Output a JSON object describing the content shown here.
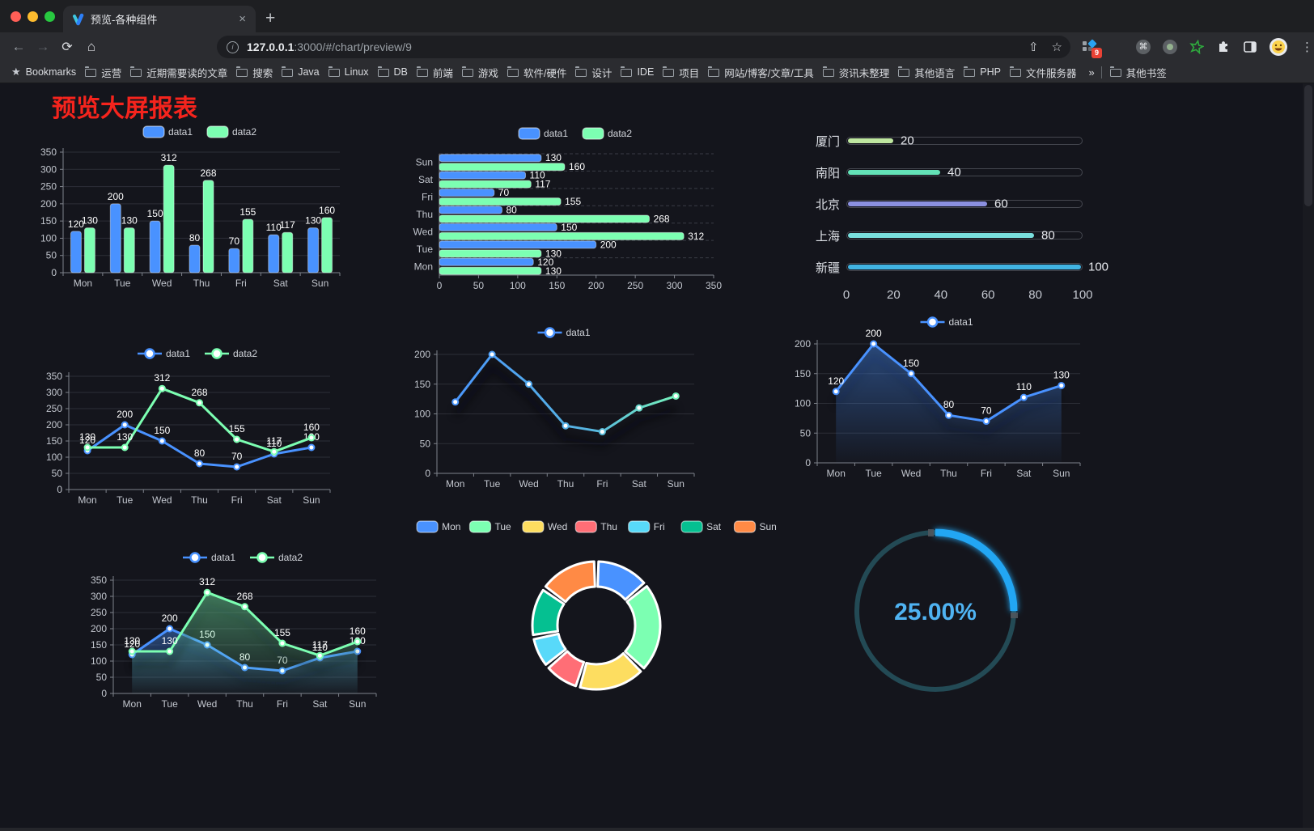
{
  "browser": {
    "tab_title": "预览-各种组件",
    "close_glyph": "×",
    "new_tab_glyph": "+",
    "back_glyph": "←",
    "forward_glyph": "→",
    "reload_glyph": "⟳",
    "home_glyph": "⌂",
    "info_glyph": "i",
    "share_glyph": "⇧",
    "star_glyph": "☆",
    "cmd_glyph": "⌘",
    "kebab_glyph": "⋮",
    "url_host": "127.0.0.1",
    "url_rest": ":3000/#/chart/preview/9",
    "extension_badge": "9",
    "bookmarks_label": "Bookmarks",
    "bookmarks": [
      "运营",
      "近期需要读的文章",
      "搜索",
      "Java",
      "Linux",
      "DB",
      "前端",
      "游戏",
      "软件/硬件",
      "设计",
      "IDE",
      "项目",
      "网站/博客/文章/工具",
      "资讯未整理",
      "其他语言",
      "PHP",
      "文件服务器"
    ],
    "bookmarks_overflow": "»",
    "other_bookmarks": "其他书签"
  },
  "page": {
    "title": "预览大屏报表"
  },
  "chart_data": [
    {
      "id": "bar-vertical",
      "type": "bar",
      "categories": [
        "Mon",
        "Tue",
        "Wed",
        "Thu",
        "Fri",
        "Sat",
        "Sun"
      ],
      "series": [
        {
          "name": "data1",
          "color": "#4992ff",
          "values": [
            120,
            200,
            150,
            80,
            70,
            110,
            130
          ]
        },
        {
          "name": "data2",
          "color": "#7cffb2",
          "values": [
            130,
            130,
            312,
            268,
            155,
            117,
            160
          ]
        }
      ],
      "ylim": [
        0,
        350
      ],
      "ytick_step": 50,
      "legend_position": "top",
      "grid": true
    },
    {
      "id": "bar-horizontal",
      "type": "bar",
      "orientation": "horizontal",
      "categories": [
        "Mon",
        "Tue",
        "Wed",
        "Thu",
        "Fri",
        "Sat",
        "Sun"
      ],
      "series": [
        {
          "name": "data1",
          "color": "#4992ff",
          "values": [
            120,
            200,
            150,
            80,
            70,
            110,
            130
          ]
        },
        {
          "name": "data2",
          "color": "#7cffb2",
          "values": [
            130,
            130,
            312,
            268,
            155,
            117,
            160
          ]
        }
      ],
      "xlim": [
        0,
        350
      ],
      "xtick_step": 50,
      "legend_position": "top",
      "grid": true
    },
    {
      "id": "city-progress",
      "type": "bar",
      "orientation": "horizontal-progress",
      "items": [
        {
          "label": "厦门",
          "value": 20,
          "color": "#bfe7a0"
        },
        {
          "label": "南阳",
          "value": 40,
          "color": "#63e2b7"
        },
        {
          "label": "北京",
          "value": 60,
          "color": "#8b90e0"
        },
        {
          "label": "上海",
          "value": 80,
          "color": "#79dfdd"
        },
        {
          "label": "新疆",
          "value": 100,
          "color": "#41b4e3"
        }
      ],
      "xlim": [
        0,
        100
      ],
      "xticks": [
        0,
        20,
        40,
        60,
        80,
        100
      ]
    },
    {
      "id": "line-dual",
      "type": "line",
      "categories": [
        "Mon",
        "Tue",
        "Wed",
        "Thu",
        "Fri",
        "Sat",
        "Sun"
      ],
      "series": [
        {
          "name": "data1",
          "color": "#4992ff",
          "values": [
            120,
            200,
            150,
            80,
            70,
            110,
            130
          ]
        },
        {
          "name": "data2",
          "color": "#7cffb2",
          "values": [
            130,
            130,
            312,
            268,
            155,
            117,
            160
          ]
        }
      ],
      "ylim": [
        0,
        350
      ],
      "ytick_step": 50,
      "legend_position": "top",
      "grid": true
    },
    {
      "id": "line-gradient",
      "type": "line",
      "categories": [
        "Mon",
        "Tue",
        "Wed",
        "Thu",
        "Fri",
        "Sat",
        "Sun"
      ],
      "series": [
        {
          "name": "data1",
          "color": "#4992ff",
          "color_gradient": [
            "#4992ff",
            "#57b6e0",
            "#7cffb2"
          ],
          "values": [
            120,
            200,
            150,
            80,
            70,
            110,
            130
          ]
        }
      ],
      "ylim": [
        0,
        200
      ],
      "ytick_step": 50,
      "legend_position": "top",
      "grid": true
    },
    {
      "id": "area-single",
      "type": "area",
      "categories": [
        "Mon",
        "Tue",
        "Wed",
        "Thu",
        "Fri",
        "Sat",
        "Sun"
      ],
      "series": [
        {
          "name": "data1",
          "color": "#4992ff",
          "values": [
            120,
            200,
            150,
            80,
            70,
            110,
            130
          ],
          "area": true
        }
      ],
      "ylim": [
        0,
        200
      ],
      "ytick_step": 50,
      "legend_position": "top",
      "grid": true
    },
    {
      "id": "area-dual",
      "type": "area",
      "categories": [
        "Mon",
        "Tue",
        "Wed",
        "Thu",
        "Fri",
        "Sat",
        "Sun"
      ],
      "series": [
        {
          "name": "data1",
          "color": "#4992ff",
          "values": [
            120,
            200,
            150,
            80,
            70,
            110,
            130
          ],
          "area": true
        },
        {
          "name": "data2",
          "color": "#7cffb2",
          "values": [
            130,
            130,
            312,
            268,
            155,
            117,
            160
          ],
          "area": true
        }
      ],
      "ylim": [
        0,
        350
      ],
      "ytick_step": 50,
      "legend_position": "top",
      "grid": true
    },
    {
      "id": "donut",
      "type": "pie",
      "categories": [
        "Mon",
        "Tue",
        "Wed",
        "Thu",
        "Fri",
        "Sat",
        "Sun"
      ],
      "values": [
        120,
        200,
        150,
        80,
        70,
        110,
        130
      ],
      "colors": [
        "#4992ff",
        "#7cffb2",
        "#fddd60",
        "#ff6e76",
        "#58d9f9",
        "#05c091",
        "#ff8a45"
      ],
      "legend_position": "top"
    },
    {
      "id": "gauge",
      "type": "gauge",
      "value": 25,
      "display": "25.00%",
      "min": 0,
      "max": 100,
      "color": "#21a6f3",
      "track_color": "#234a55",
      "text_color": "#4fb3f2"
    }
  ]
}
